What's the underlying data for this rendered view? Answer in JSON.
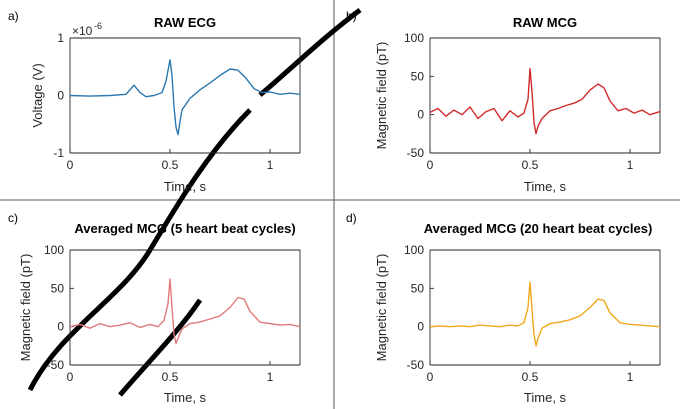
{
  "chart_data": [
    {
      "type": "line",
      "panel_letter": "a)",
      "title": "RAW ECG",
      "xlabel": "Time, s",
      "ylabel": "Voltage (V)",
      "y_exponent": "×10",
      "y_exponent_power": "-6",
      "xlim": [
        0,
        1.15
      ],
      "ylim": [
        -1,
        1
      ],
      "xticks": [
        0,
        0.5,
        1
      ],
      "xtick_labels": [
        "0",
        "0.5",
        "1"
      ],
      "yticks": [
        -1,
        0,
        1
      ],
      "ytick_labels": [
        "-1",
        "0",
        "1"
      ],
      "color": "#2b78b0",
      "x": [
        0.0,
        0.1,
        0.2,
        0.28,
        0.32,
        0.35,
        0.38,
        0.42,
        0.46,
        0.48,
        0.5,
        0.51,
        0.52,
        0.53,
        0.54,
        0.55,
        0.56,
        0.58,
        0.6,
        0.65,
        0.7,
        0.75,
        0.8,
        0.84,
        0.88,
        0.92,
        0.96,
        1.0,
        1.05,
        1.1,
        1.15
      ],
      "y": [
        0.0,
        -0.01,
        0.0,
        0.02,
        0.18,
        0.05,
        -0.02,
        0.0,
        0.05,
        0.25,
        0.62,
        0.35,
        -0.2,
        -0.55,
        -0.68,
        -0.45,
        -0.25,
        -0.15,
        -0.05,
        0.1,
        0.22,
        0.35,
        0.46,
        0.44,
        0.3,
        0.12,
        0.05,
        0.06,
        0.02,
        0.04,
        0.02
      ]
    },
    {
      "type": "line",
      "panel_letter": "b)",
      "title": "RAW MCG",
      "xlabel": "Time, s",
      "ylabel": "Magnetic field (pT)",
      "xlim": [
        0,
        1.15
      ],
      "ylim": [
        -50,
        100
      ],
      "xticks": [
        0,
        0.5,
        1
      ],
      "xtick_labels": [
        "0",
        "0.5",
        "1"
      ],
      "yticks": [
        -50,
        0,
        50,
        100
      ],
      "ytick_labels": [
        "-50",
        "0",
        "50",
        "100"
      ],
      "color": "#d12a2a",
      "x": [
        0.0,
        0.04,
        0.08,
        0.12,
        0.16,
        0.2,
        0.24,
        0.28,
        0.32,
        0.36,
        0.4,
        0.44,
        0.47,
        0.49,
        0.5,
        0.51,
        0.52,
        0.53,
        0.54,
        0.56,
        0.6,
        0.64,
        0.68,
        0.72,
        0.76,
        0.8,
        0.84,
        0.87,
        0.9,
        0.94,
        0.98,
        1.02,
        1.06,
        1.1,
        1.15
      ],
      "y": [
        3,
        8,
        -2,
        6,
        0,
        10,
        -5,
        4,
        8,
        -8,
        5,
        -3,
        2,
        20,
        60,
        30,
        -10,
        -25,
        -15,
        -5,
        5,
        8,
        12,
        15,
        20,
        32,
        40,
        35,
        18,
        5,
        8,
        2,
        6,
        0,
        4
      ]
    },
    {
      "type": "line",
      "panel_letter": "c)",
      "title": "Averaged MCG (5 heart beat cycles)",
      "xlabel": "Time, s",
      "ylabel": "Magnetic field (pT)",
      "xlim": [
        0,
        1.15
      ],
      "ylim": [
        -50,
        100
      ],
      "xticks": [
        0,
        0.5,
        1
      ],
      "xtick_labels": [
        "0",
        "0.5",
        "1"
      ],
      "yticks": [
        -50,
        0,
        50,
        100
      ],
      "ytick_labels": [
        "-50",
        "0",
        "50",
        "100"
      ],
      "color": "#e07a7a",
      "x": [
        0.0,
        0.05,
        0.1,
        0.15,
        0.2,
        0.25,
        0.3,
        0.35,
        0.4,
        0.44,
        0.47,
        0.49,
        0.5,
        0.51,
        0.52,
        0.53,
        0.54,
        0.56,
        0.6,
        0.65,
        0.7,
        0.75,
        0.8,
        0.84,
        0.87,
        0.9,
        0.95,
        1.0,
        1.05,
        1.1,
        1.15
      ],
      "y": [
        0,
        3,
        -2,
        4,
        0,
        2,
        5,
        -1,
        3,
        0,
        8,
        30,
        62,
        25,
        -10,
        -22,
        -15,
        -3,
        4,
        6,
        10,
        14,
        25,
        38,
        36,
        20,
        6,
        4,
        2,
        3,
        0
      ]
    },
    {
      "type": "line",
      "panel_letter": "d)",
      "title": "Averaged MCG (20 heart beat cycles)",
      "xlabel": "Time, s",
      "ylabel": "Magnetic field (pT)",
      "xlim": [
        0,
        1.15
      ],
      "ylim": [
        -50,
        100
      ],
      "xticks": [
        0,
        0.5,
        1
      ],
      "xtick_labels": [
        "0",
        "0.5",
        "1"
      ],
      "yticks": [
        -50,
        0,
        50,
        100
      ],
      "ytick_labels": [
        "-50",
        "0",
        "50",
        "100"
      ],
      "color": "#f0a81c",
      "x": [
        0.0,
        0.05,
        0.1,
        0.15,
        0.2,
        0.25,
        0.3,
        0.35,
        0.4,
        0.44,
        0.47,
        0.49,
        0.5,
        0.51,
        0.52,
        0.53,
        0.54,
        0.56,
        0.6,
        0.65,
        0.7,
        0.75,
        0.8,
        0.84,
        0.87,
        0.9,
        0.95,
        1.0,
        1.05,
        1.1,
        1.15
      ],
      "y": [
        0,
        1,
        0,
        1,
        0,
        2,
        1,
        0,
        2,
        1,
        5,
        25,
        58,
        22,
        -10,
        -25,
        -15,
        -2,
        4,
        6,
        9,
        14,
        25,
        36,
        34,
        18,
        5,
        3,
        2,
        1,
        0
      ]
    }
  ]
}
